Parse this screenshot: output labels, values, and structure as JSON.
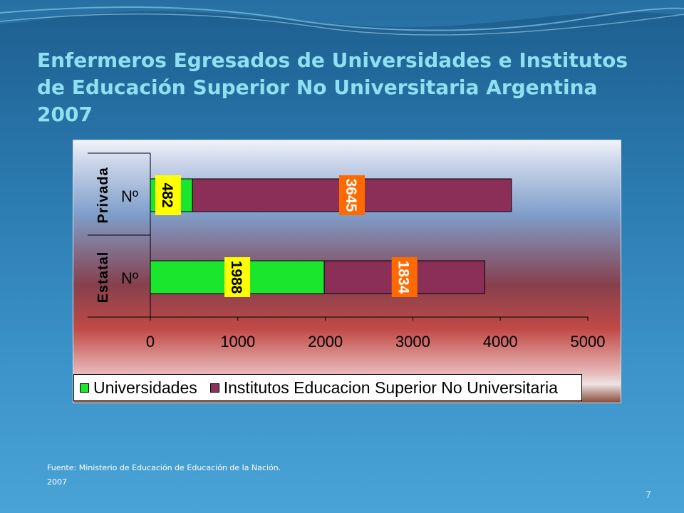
{
  "slide": {
    "title": "Enfermeros Egresados de Universidades e Institutos de Educación Superior No Universitaria Argentina 2007",
    "source_line1": "Fuente: Ministerio de Educación de Educación de la Nación.",
    "source_line2": "2007",
    "page_number": "7"
  },
  "colors": {
    "universidades": "#19e62c",
    "institutos": "#8c2f58",
    "label_yellow": "#ffff00",
    "label_orange": "#ff6a00"
  },
  "chart_data": {
    "type": "bar",
    "orientation": "horizontal",
    "stacked": true,
    "groups": [
      "Privada",
      "Estatal"
    ],
    "categories": [
      "Nº",
      "Nº"
    ],
    "series": [
      {
        "name": "Universidades",
        "values": [
          482,
          1988
        ]
      },
      {
        "name": "Institutos Educacion Superior No Universitaria",
        "values": [
          3645,
          1834
        ]
      }
    ],
    "data_labels": [
      [
        "482",
        "3645"
      ],
      [
        "1988",
        "1834"
      ]
    ],
    "xlim": [
      0,
      5000
    ],
    "xticks": [
      0,
      1000,
      2000,
      3000,
      4000,
      5000
    ],
    "legend_position": "bottom",
    "grid": false
  }
}
